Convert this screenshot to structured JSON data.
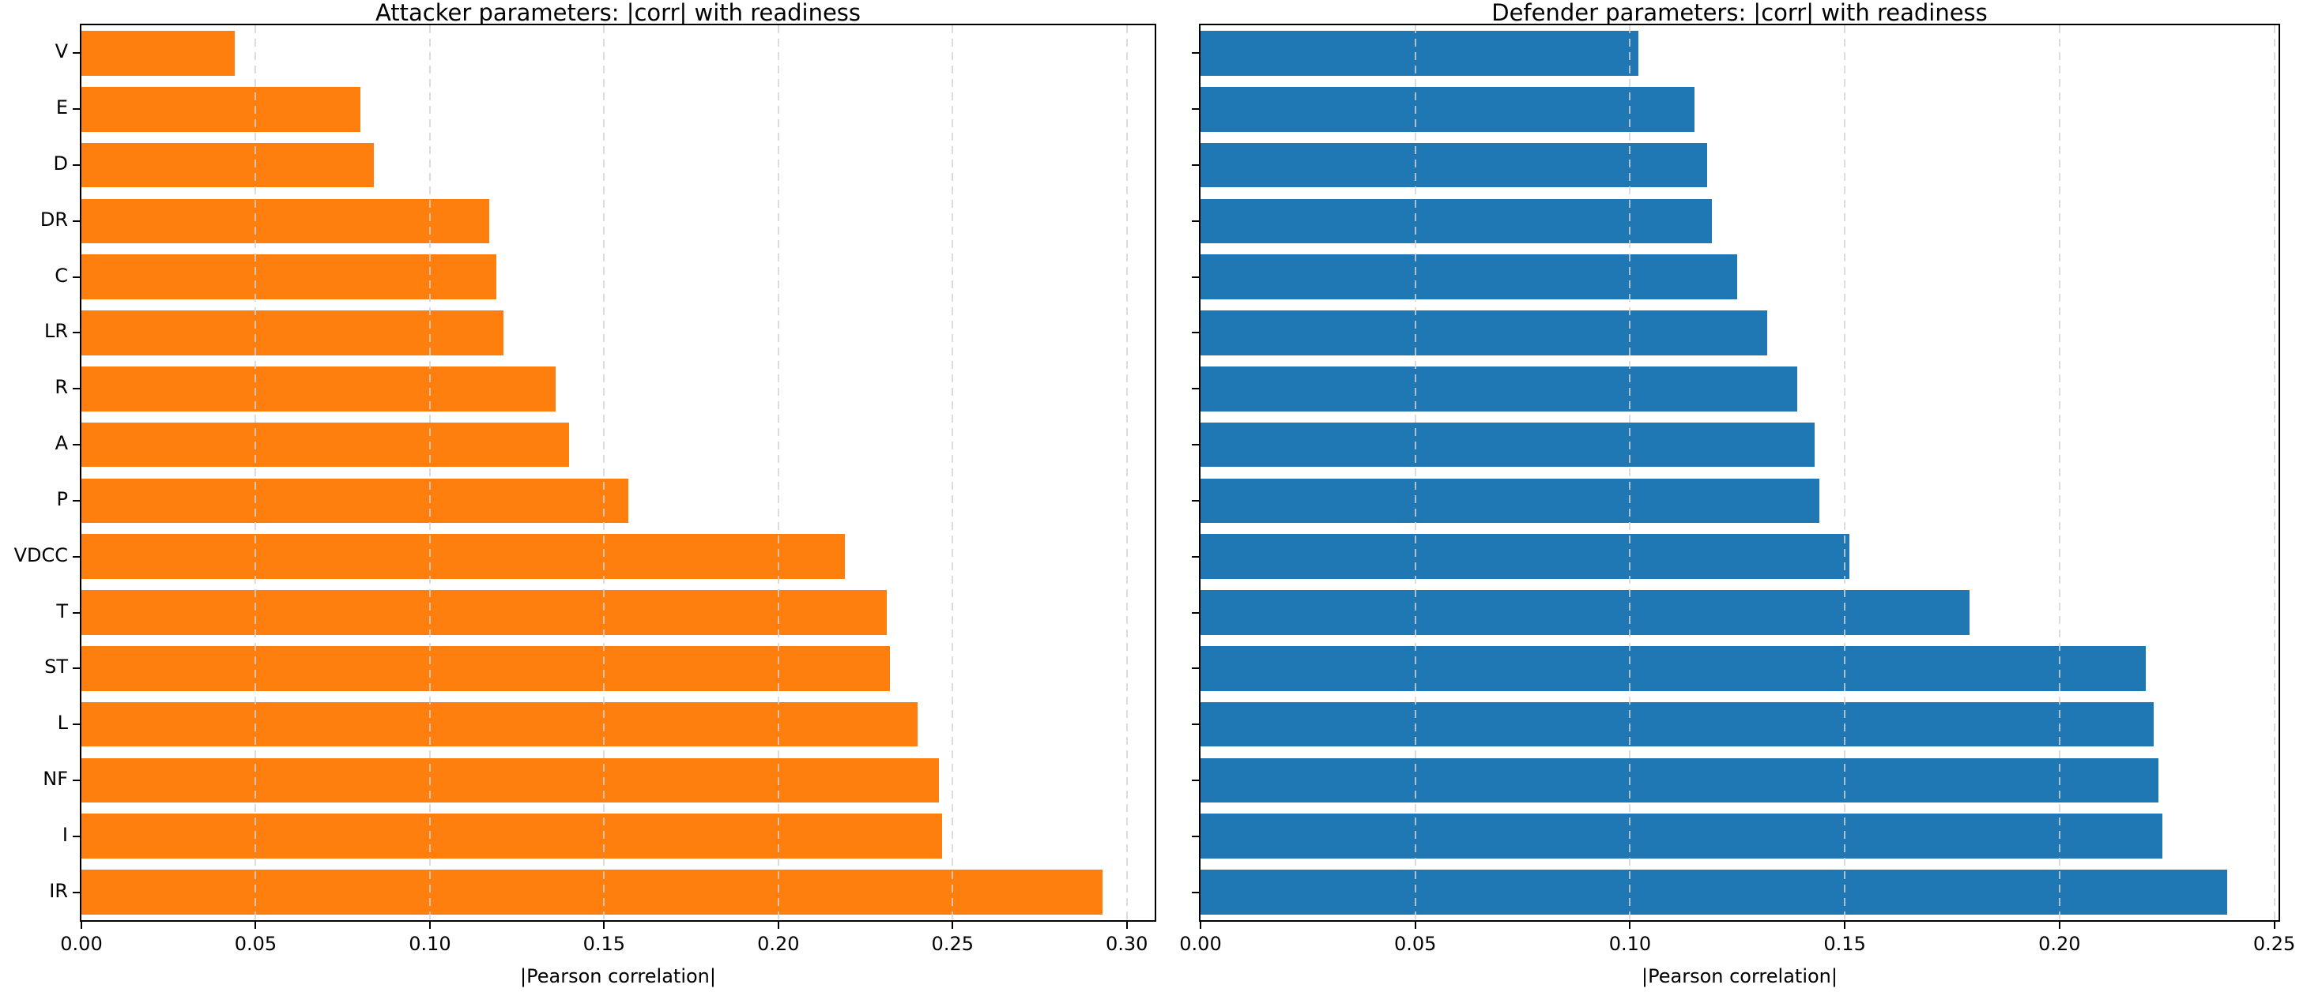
{
  "chart_data": [
    {
      "type": "bar",
      "orientation": "horizontal",
      "title": "Attacker parameters: |corr| with readiness",
      "xlabel": "|Pearson correlation|",
      "categories": [
        "V",
        "E",
        "D",
        "DR",
        "C",
        "LR",
        "R",
        "A",
        "P",
        "VDCC",
        "T",
        "ST",
        "L",
        "NF",
        "I",
        "IR"
      ],
      "values": [
        0.044,
        0.08,
        0.084,
        0.117,
        0.119,
        0.121,
        0.136,
        0.14,
        0.157,
        0.219,
        0.231,
        0.232,
        0.24,
        0.246,
        0.247,
        0.293
      ],
      "bar_color": "#ff7f0e",
      "xlim": [
        0,
        0.308
      ],
      "xticks": [
        0.0,
        0.05,
        0.1,
        0.15,
        0.2,
        0.25,
        0.3
      ],
      "xtick_labels": [
        "0.00",
        "0.05",
        "0.10",
        "0.15",
        "0.20",
        "0.25",
        "0.30"
      ],
      "ytick_labels_visible": true,
      "grid": "vertical-dashed",
      "grid_color": "#d3d3d3",
      "spine_color": "#000000"
    },
    {
      "type": "bar",
      "orientation": "horizontal",
      "title": "Defender parameters: |corr| with readiness",
      "xlabel": "|Pearson correlation|",
      "categories": [
        "",
        "",
        "",
        "",
        "",
        "",
        "",
        "",
        "",
        "",
        "",
        "",
        "",
        "",
        "",
        ""
      ],
      "values": [
        0.102,
        0.115,
        0.118,
        0.119,
        0.125,
        0.132,
        0.139,
        0.143,
        0.144,
        0.151,
        0.179,
        0.22,
        0.222,
        0.223,
        0.224,
        0.239
      ],
      "bar_color": "#1f77b4",
      "xlim": [
        0,
        0.251
      ],
      "xticks": [
        0.0,
        0.05,
        0.1,
        0.15,
        0.2,
        0.25
      ],
      "xtick_labels": [
        "0.00",
        "0.05",
        "0.10",
        "0.15",
        "0.20",
        "0.25"
      ],
      "ytick_labels_visible": false,
      "grid": "vertical-dashed",
      "grid_color": "#d3d3d3",
      "spine_color": "#000000"
    }
  ]
}
